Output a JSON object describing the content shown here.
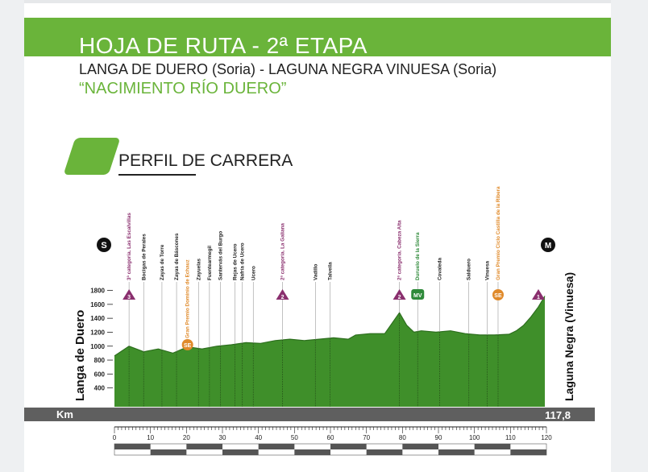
{
  "header": {
    "title": "HOJA DE RUTA - 2ª ETAPA",
    "subtitle": "LANGA DE DUERO (Soria) - LAGUNA NEGRA VINUESA (Soria)",
    "quote": "“NACIMIENTO RÍO DUERO”"
  },
  "section": {
    "title": "PERFIL DE CARRERA"
  },
  "colors": {
    "brand_green": "#6ab43a",
    "profile_green": "#3f8f2a",
    "mountain_purple": "#8a2f6e",
    "sprint_orange": "#e08a2a",
    "mv_green": "#2f8a3a",
    "axis_gray": "#5f5f5f"
  },
  "chart_data": {
    "type": "area",
    "title": "",
    "xlabel": "Km",
    "ylabel": "",
    "xlim": [
      0,
      120
    ],
    "ylim": [
      400,
      1800
    ],
    "x_ticks": [
      0,
      10,
      20,
      30,
      40,
      50,
      60,
      70,
      80,
      90,
      100,
      110,
      120
    ],
    "y_ticks": [
      400,
      600,
      800,
      1000,
      1200,
      1400,
      1600,
      1800
    ],
    "start_label": "Langa de Duero",
    "finish_label": "Laguna Negra (Vinuesa)",
    "start_icon": "S",
    "finish_icon": "M",
    "total_km": "117,8",
    "x": [
      0,
      4,
      8,
      12,
      16,
      20,
      24,
      28,
      32,
      36,
      40,
      44,
      48,
      52,
      56,
      60,
      64,
      66,
      70,
      74,
      76,
      78,
      80,
      82,
      84,
      88,
      92,
      96,
      100,
      104,
      108,
      110,
      112,
      114,
      116,
      117.8
    ],
    "y": [
      860,
      1000,
      920,
      960,
      900,
      990,
      960,
      1000,
      1020,
      1050,
      1040,
      1080,
      1100,
      1080,
      1100,
      1120,
      1100,
      1160,
      1180,
      1180,
      1330,
      1480,
      1300,
      1200,
      1220,
      1200,
      1220,
      1180,
      1160,
      1160,
      1170,
      1220,
      1300,
      1420,
      1560,
      1720
    ],
    "places": [
      {
        "km": 4,
        "name": "3ª categoría. Las Escalvillas",
        "kind": "mountain"
      },
      {
        "km": 8,
        "name": "Bocigas de Perales",
        "kind": "town"
      },
      {
        "km": 13,
        "name": "Zayas de Torre",
        "kind": "town"
      },
      {
        "km": 17,
        "name": "Zayas de Báscones",
        "kind": "town"
      },
      {
        "km": 23,
        "name": "Zayuelas",
        "kind": "town"
      },
      {
        "km": 26,
        "name": "Fuentearmegil",
        "kind": "town"
      },
      {
        "km": 29,
        "name": "Santervás del Burgo",
        "kind": "town"
      },
      {
        "km": 33,
        "name": "Rejas de Ucero",
        "kind": "town"
      },
      {
        "km": 35,
        "name": "Nafría de Ucero",
        "kind": "town"
      },
      {
        "km": 38,
        "name": "Ucero",
        "kind": "town"
      },
      {
        "km": 46,
        "name": "2ª categoría. La Galiana",
        "kind": "mountain"
      },
      {
        "km": 55,
        "name": "Vadillo",
        "kind": "town"
      },
      {
        "km": 59,
        "name": "Talveila",
        "kind": "town"
      },
      {
        "km": 78,
        "name": "2ª categoría. Cabeza Alta",
        "kind": "mountain"
      },
      {
        "km": 83,
        "name": "Duruelo de la Sierra",
        "kind": "mv"
      },
      {
        "km": 89,
        "name": "Covaleda",
        "kind": "town"
      },
      {
        "km": 97,
        "name": "Salduero",
        "kind": "town"
      },
      {
        "km": 102,
        "name": "Vinuesa",
        "kind": "town"
      },
      {
        "km": 105,
        "name": "Gran Premio Ciclo Castilla de la Ribera",
        "kind": "sprint"
      }
    ],
    "lower_labels": [
      {
        "km": 20,
        "name": "Gran Premio Dominio de Echauz",
        "badge": "SE"
      }
    ],
    "markers": [
      {
        "km": 4,
        "badge": "3",
        "kind": "mountain"
      },
      {
        "km": 46,
        "badge": "2",
        "kind": "mountain"
      },
      {
        "km": 78,
        "badge": "2",
        "kind": "mountain"
      },
      {
        "km": 83,
        "badge": "MV",
        "kind": "mv"
      },
      {
        "km": 105,
        "badge": "SE",
        "kind": "sprint"
      },
      {
        "km": 117.8,
        "badge": "1",
        "kind": "mountain"
      }
    ]
  }
}
